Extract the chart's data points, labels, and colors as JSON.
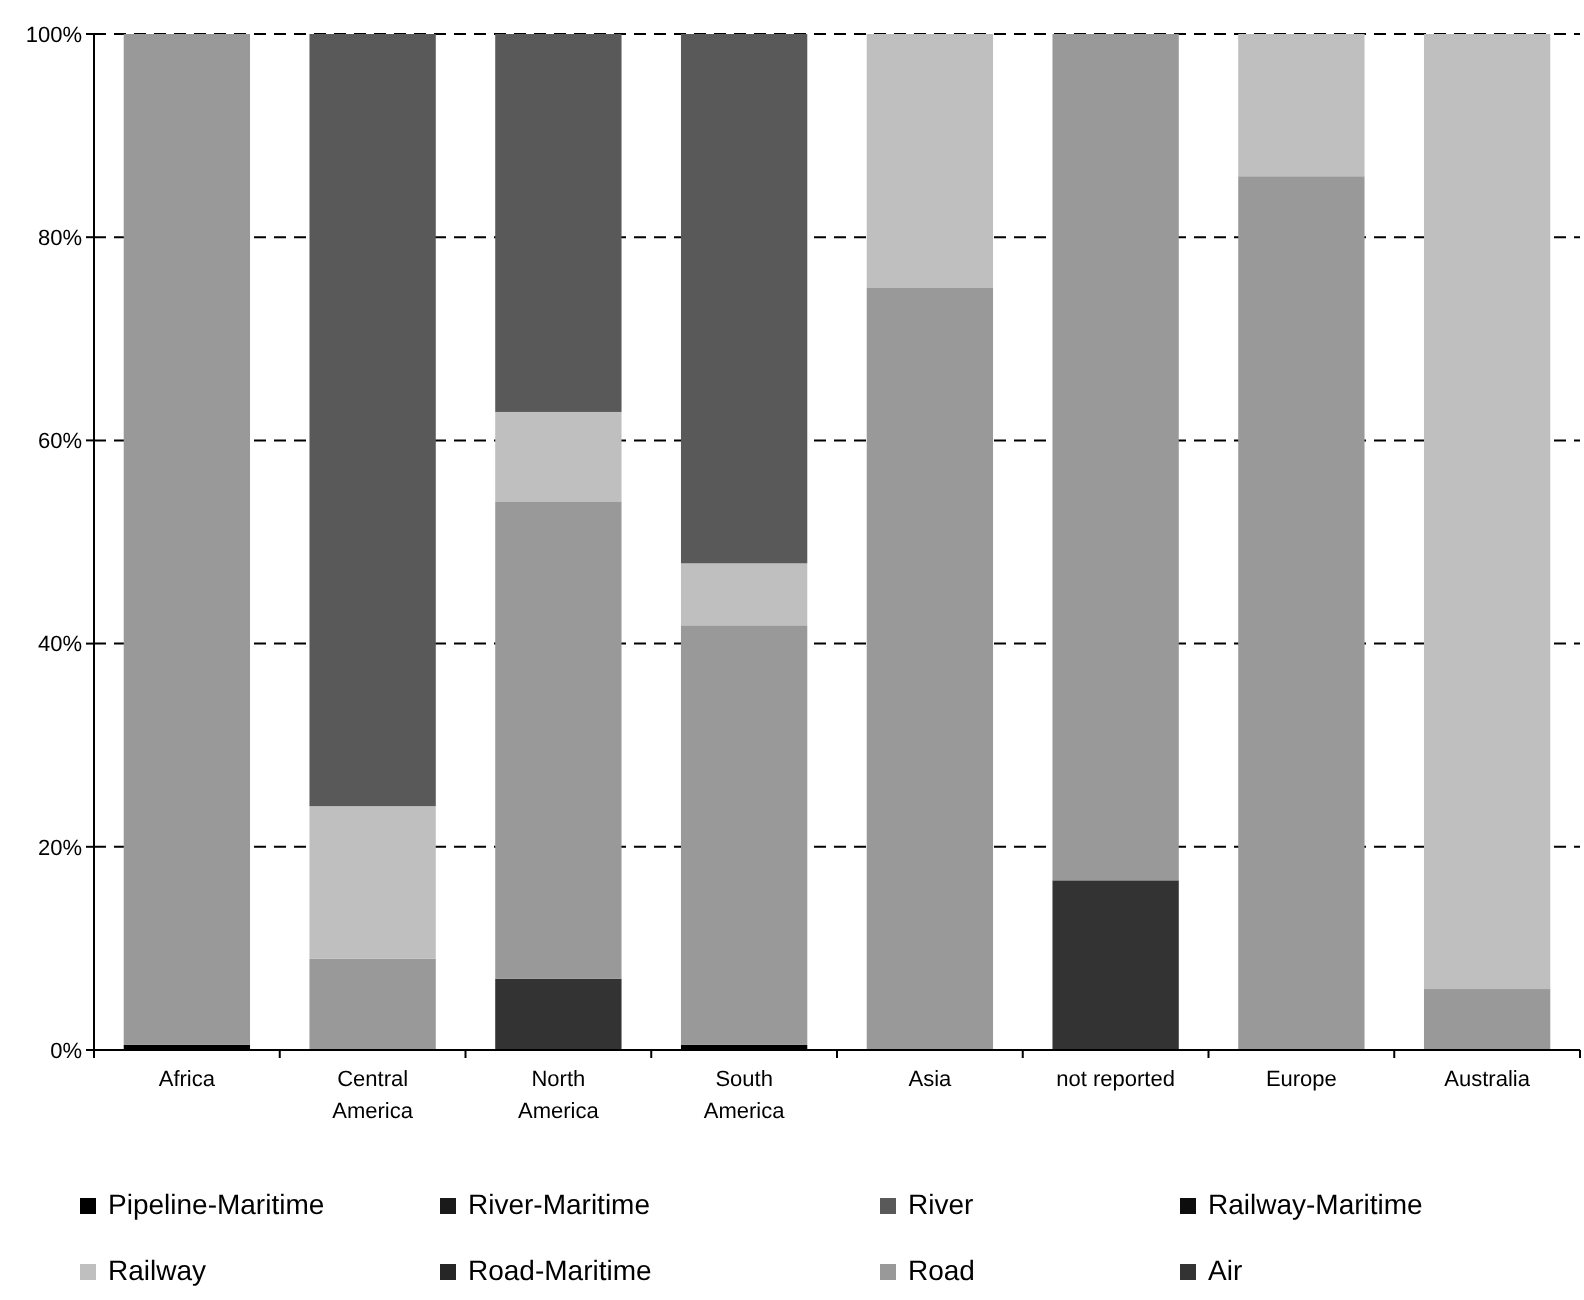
{
  "chart_data": {
    "type": "bar",
    "stacked": true,
    "categories": [
      "Africa",
      "Central America",
      "North America",
      "South America",
      "Asia",
      "not reported",
      "Europe",
      "Australia"
    ],
    "series": [
      {
        "name": "Pipeline-Maritime",
        "color": "#000000",
        "values": [
          0.5,
          0,
          0,
          0.5,
          0,
          0,
          0,
          0
        ]
      },
      {
        "name": "River-Maritime",
        "color": "#1a1a1a",
        "values": [
          0,
          0,
          0,
          0,
          0,
          0,
          0,
          0
        ]
      },
      {
        "name": "River",
        "color": "#595959",
        "values": [
          0,
          76,
          37.2,
          52.1,
          0,
          0,
          0,
          0
        ]
      },
      {
        "name": "Railway-Maritime",
        "color": "#0d0d0d",
        "values": [
          0,
          0,
          0,
          0,
          0,
          0,
          0,
          0
        ]
      },
      {
        "name": "Railway",
        "color": "#bfbfbf",
        "values": [
          0,
          15,
          8.8,
          6.1,
          25,
          0,
          14,
          94
        ]
      },
      {
        "name": "Road-Maritime",
        "color": "#262626",
        "values": [
          0,
          0,
          0,
          0,
          0,
          0,
          0,
          0
        ]
      },
      {
        "name": "Road",
        "color": "#999999",
        "values": [
          99.5,
          9,
          47,
          41.3,
          75,
          83.3,
          86,
          6
        ]
      },
      {
        "name": "Air",
        "color": "#333333",
        "values": [
          0,
          0,
          7,
          0,
          0,
          16.7,
          0,
          0
        ]
      }
    ],
    "ylim": [
      0,
      100
    ],
    "yticks": [
      {
        "value": 0,
        "label": "0%"
      },
      {
        "value": 20,
        "label": "20%"
      },
      {
        "value": 40,
        "label": "40%"
      },
      {
        "value": 60,
        "label": "60%"
      },
      {
        "value": 80,
        "label": "80%"
      },
      {
        "value": 100,
        "label": "100%"
      }
    ],
    "grid": "y",
    "legend": "bottom"
  }
}
